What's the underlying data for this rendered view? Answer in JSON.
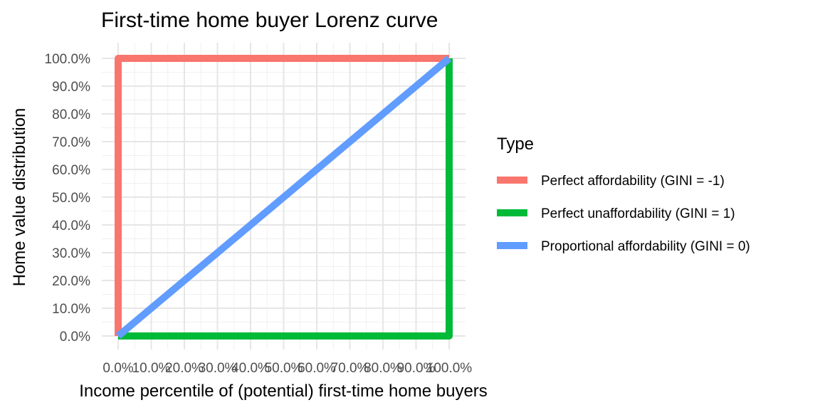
{
  "chart_data": {
    "type": "line",
    "title": "First-time home buyer Lorenz curve",
    "xlabel": "Income percentile of (potential) first-time home buyers",
    "ylabel": "Home value distribution",
    "xlim": [
      0,
      1
    ],
    "ylim": [
      0,
      1
    ],
    "x_ticks": [
      0,
      0.1,
      0.2,
      0.3,
      0.4,
      0.5,
      0.6,
      0.7,
      0.8,
      0.9,
      1.0
    ],
    "x_tick_labels": [
      "0.0%",
      "10.0%",
      "20.0%",
      "30.0%",
      "40.0%",
      "50.0%",
      "60.0%",
      "70.0%",
      "80.0%",
      "90.0%",
      "100.0%"
    ],
    "y_ticks": [
      0,
      0.1,
      0.2,
      0.3,
      0.4,
      0.5,
      0.6,
      0.7,
      0.8,
      0.9,
      1.0
    ],
    "y_tick_labels": [
      "0.0%",
      "10.0%",
      "20.0%",
      "30.0%",
      "40.0%",
      "50.0%",
      "60.0%",
      "70.0%",
      "80.0%",
      "90.0%",
      "100.0%"
    ],
    "grid": true,
    "legend": {
      "title": "Type",
      "position": "right"
    },
    "series": [
      {
        "name": "Perfect affordability (GINI = -1)",
        "color": "#F8766D",
        "points": [
          [
            0,
            0
          ],
          [
            0,
            1
          ],
          [
            1,
            1
          ]
        ]
      },
      {
        "name": "Perfect unaffordability (GINI = 1)",
        "color": "#00BA38",
        "points": [
          [
            0,
            0
          ],
          [
            1,
            0
          ],
          [
            1,
            1
          ]
        ]
      },
      {
        "name": "Proportional affordability (GINI = 0)",
        "color": "#619CFF",
        "points": [
          [
            0,
            0
          ],
          [
            1,
            1
          ]
        ]
      }
    ]
  }
}
